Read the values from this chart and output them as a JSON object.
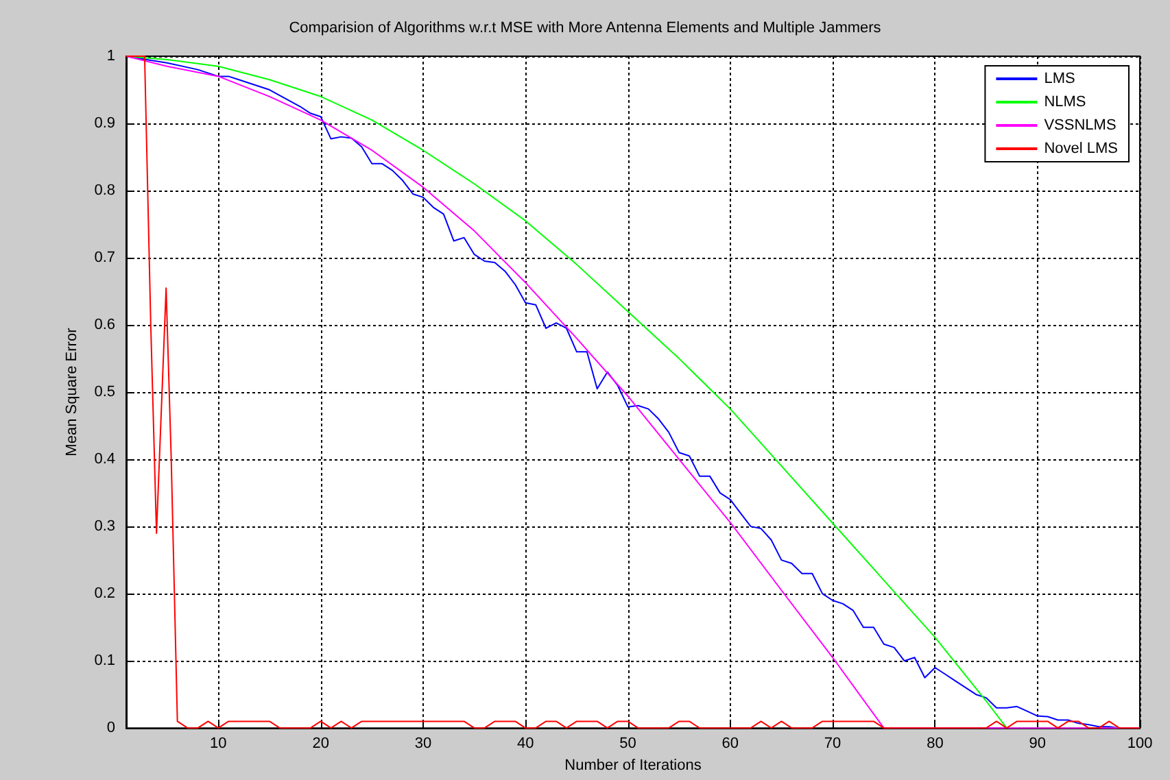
{
  "chart_data": {
    "type": "line",
    "title": "Comparision of Algorithms w.r.t MSE with More Antenna Elements and Multiple Jammers",
    "xlabel": "Number of Iterations",
    "ylabel": "Mean Square Error",
    "xlim": [
      1,
      100
    ],
    "xticks": [
      10,
      20,
      30,
      40,
      50,
      60,
      70,
      80,
      90,
      100
    ],
    "ylim": [
      0,
      1
    ],
    "yticks": [
      0,
      0.1,
      0.2,
      0.3,
      0.4,
      0.5,
      0.6,
      0.7,
      0.8,
      0.9,
      1
    ],
    "grid": true,
    "legend": "top right",
    "marker": "none",
    "line_style": "solid",
    "series": [
      {
        "name": "LMS",
        "color": "#0000ff",
        "x": [
          1,
          3,
          5,
          8,
          10,
          11,
          12,
          15,
          18,
          19,
          20,
          21,
          22,
          23,
          24,
          25,
          26,
          27,
          28,
          29,
          30,
          31,
          32,
          33,
          34,
          35,
          36,
          37,
          38,
          39,
          40,
          41,
          42,
          43,
          44,
          45,
          46,
          47,
          48,
          49,
          50,
          51,
          52,
          53,
          54,
          55,
          56,
          57,
          58,
          59,
          60,
          61,
          62,
          63,
          64,
          65,
          66,
          67,
          68,
          69,
          70,
          71,
          72,
          73,
          74,
          75,
          76,
          77,
          78,
          79,
          80,
          81,
          82,
          83,
          84,
          85,
          86,
          87,
          88,
          89,
          90,
          91,
          92,
          93,
          94,
          95,
          96,
          97,
          98,
          100
        ],
        "values": [
          1,
          0.995,
          0.99,
          0.98,
          0.97,
          0.97,
          0.965,
          0.95,
          0.925,
          0.915,
          0.91,
          0.877,
          0.88,
          0.878,
          0.865,
          0.84,
          0.84,
          0.83,
          0.815,
          0.795,
          0.79,
          0.775,
          0.765,
          0.725,
          0.73,
          0.705,
          0.695,
          0.693,
          0.68,
          0.66,
          0.633,
          0.63,
          0.595,
          0.603,
          0.595,
          0.56,
          0.56,
          0.505,
          0.53,
          0.51,
          0.478,
          0.48,
          0.475,
          0.46,
          0.44,
          0.41,
          0.405,
          0.375,
          0.375,
          0.35,
          0.34,
          0.32,
          0.3,
          0.297,
          0.28,
          0.25,
          0.245,
          0.23,
          0.23,
          0.2,
          0.19,
          0.185,
          0.175,
          0.15,
          0.15,
          0.125,
          0.12,
          0.1,
          0.105,
          0.075,
          0.09,
          0.08,
          0.07,
          0.06,
          0.05,
          0.045,
          0.03,
          0.03,
          0.032,
          0.025,
          0.018,
          0.017,
          0.012,
          0.012,
          0.007,
          0.005,
          0.002,
          0.002,
          0,
          0
        ]
      },
      {
        "name": "NLMS",
        "color": "#00ff00",
        "x": [
          1,
          5,
          10,
          15,
          20,
          25,
          30,
          35,
          40,
          45,
          50,
          55,
          60,
          65,
          70,
          75,
          80,
          85,
          87,
          100
        ],
        "values": [
          1,
          0.995,
          0.985,
          0.965,
          0.94,
          0.905,
          0.86,
          0.81,
          0.755,
          0.69,
          0.62,
          0.55,
          0.475,
          0.39,
          0.305,
          0.22,
          0.135,
          0.04,
          0,
          0
        ]
      },
      {
        "name": "VSSNLMS",
        "color": "#ff00ff",
        "x": [
          1,
          5,
          10,
          15,
          20,
          25,
          30,
          35,
          40,
          45,
          50,
          55,
          60,
          65,
          70,
          75,
          100
        ],
        "values": [
          1,
          0.985,
          0.97,
          0.94,
          0.905,
          0.86,
          0.805,
          0.74,
          0.663,
          0.58,
          0.494,
          0.4,
          0.306,
          0.205,
          0.105,
          0,
          0
        ]
      },
      {
        "name": "Novel LMS",
        "color": "#ff0000",
        "x": [
          1,
          2.8,
          3.4,
          3.96,
          4.9,
          5.4,
          6,
          7,
          8,
          9,
          10,
          11,
          15,
          16,
          19,
          20,
          21,
          22,
          23,
          24,
          34,
          35,
          36,
          37,
          39,
          40,
          41,
          42,
          43,
          44,
          45,
          47,
          48,
          49,
          50,
          51,
          54,
          55,
          56,
          57,
          62,
          63,
          64,
          65,
          66,
          68,
          69,
          70,
          71,
          74,
          75,
          85,
          86,
          87,
          88,
          91,
          92,
          93,
          94,
          95,
          96,
          97,
          98,
          100
        ],
        "values": [
          1,
          1,
          0.6,
          0.29,
          0.655,
          0.4,
          0.01,
          0,
          0,
          0.01,
          0,
          0.01,
          0.01,
          0,
          0,
          0.01,
          0,
          0.01,
          0,
          0.01,
          0.01,
          0,
          0,
          0.01,
          0.01,
          0,
          0,
          0.01,
          0.01,
          0,
          0.01,
          0.01,
          0,
          0.01,
          0.01,
          0,
          0,
          0.01,
          0.01,
          0,
          0,
          0.01,
          0,
          0.01,
          0,
          0,
          0.01,
          0.01,
          0.01,
          0.01,
          0,
          0,
          0.01,
          0,
          0.01,
          0.01,
          0,
          0.01,
          0.01,
          0,
          0,
          0.01,
          0,
          0
        ]
      }
    ]
  }
}
